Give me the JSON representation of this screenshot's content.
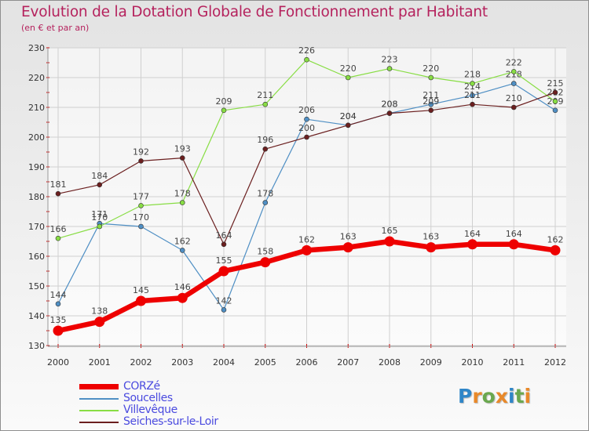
{
  "title": "Evolution de la Dotation Globale de Fonctionnement par Habitant",
  "subtitle": "(en € et par an)",
  "brand": {
    "text": "Proxiti",
    "letters": [
      {
        "ch": "P",
        "color": "#2f86c8"
      },
      {
        "ch": "r",
        "color": "#e8892a"
      },
      {
        "ch": "o",
        "color": "#6aa84f"
      },
      {
        "ch": "x",
        "color": "#e8892a"
      },
      {
        "ch": "i",
        "color": "#2f86c8"
      },
      {
        "ch": "t",
        "color": "#6aa84f"
      },
      {
        "ch": "i",
        "color": "#e8892a"
      }
    ]
  },
  "chart_data": {
    "type": "line",
    "title": "Evolution de la Dotation Globale de Fonctionnement par Habitant",
    "subtitle": "(en € et par an)",
    "x": [
      "2000",
      "2001",
      "2002",
      "2003",
      "2004",
      "2005",
      "2006",
      "2007",
      "2008",
      "2009",
      "2010",
      "2011",
      "2012"
    ],
    "ylim": [
      130,
      230
    ],
    "yticks": [
      130,
      140,
      150,
      160,
      170,
      180,
      190,
      200,
      210,
      220,
      230
    ],
    "grid": true,
    "legend_position": "bottom-left",
    "series": [
      {
        "name": "CORZé",
        "color": "#ee0000",
        "values": [
          135,
          138,
          145,
          146,
          155,
          158,
          162,
          163,
          165,
          163,
          164,
          164,
          162
        ]
      },
      {
        "name": "Soucelles",
        "color": "#4f8fc4",
        "values": [
          144,
          171,
          170,
          162,
          142,
          178,
          206,
          204,
          208,
          211,
          214,
          218,
          209
        ]
      },
      {
        "name": "Villevêque",
        "color": "#88dd44",
        "values": [
          166,
          170,
          177,
          178,
          209,
          211,
          226,
          220,
          223,
          220,
          218,
          222,
          212
        ]
      },
      {
        "name": "Seiches-sur-le-Loir",
        "color": "#6b1f1f",
        "values": [
          181,
          184,
          192,
          193,
          164,
          196,
          200,
          204,
          208,
          209,
          211,
          210,
          215
        ]
      }
    ]
  }
}
